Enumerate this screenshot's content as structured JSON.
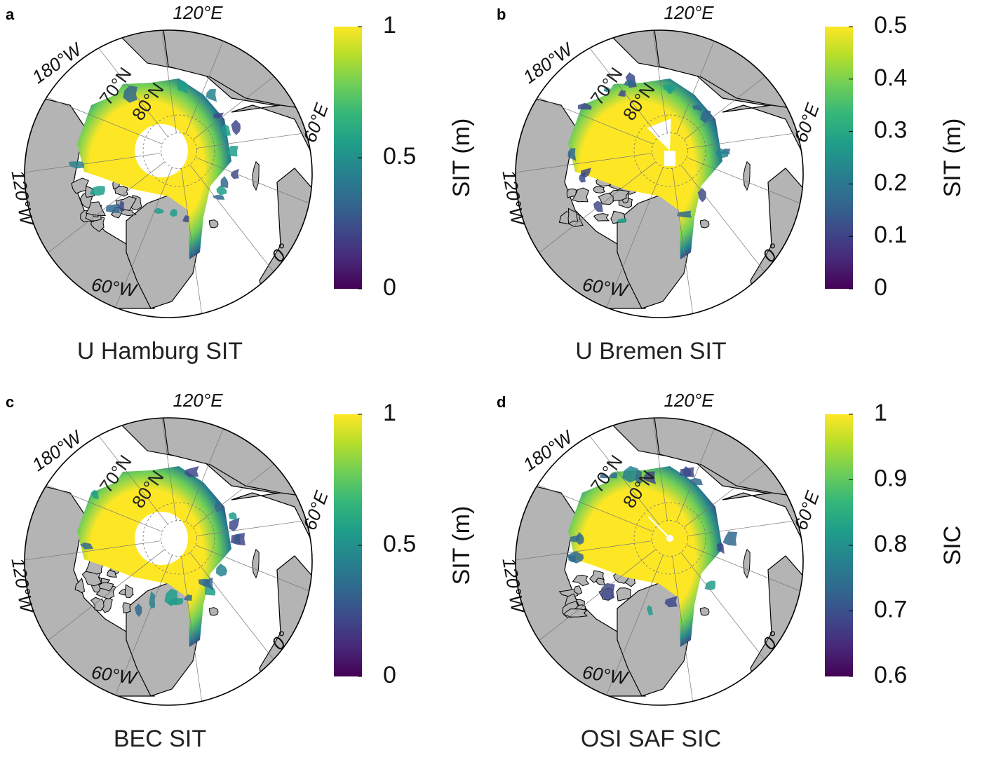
{
  "chart_data": [
    {
      "type": "heatmap",
      "panel_letter": "a",
      "title": "U Hamburg SIT",
      "projection": "north polar stereographic",
      "lat_circle_labels": [
        "70°N",
        "80°N"
      ],
      "lon_labels": [
        "120°E",
        "60°E",
        "0°",
        "60°W",
        "120°W",
        "180°W"
      ],
      "colorbar": {
        "label": "SIT (m)",
        "range": [
          0,
          1
        ],
        "ticks": [
          "0",
          "0.5",
          "1"
        ],
        "colormap": "viridis"
      },
      "pole_hole": "large"
    },
    {
      "type": "heatmap",
      "panel_letter": "b",
      "title": "U Bremen SIT",
      "projection": "north polar stereographic",
      "lat_circle_labels": [
        "70°N",
        "80°N"
      ],
      "lon_labels": [
        "120°E",
        "60°E",
        "0°",
        "60°W",
        "120°W",
        "180°W"
      ],
      "colorbar": {
        "label": "SIT (m)",
        "range": [
          0,
          0.5
        ],
        "ticks": [
          "0",
          "0.1",
          "0.2",
          "0.3",
          "0.4",
          "0.5"
        ],
        "colormap": "viridis"
      },
      "pole_hole": "wedge"
    },
    {
      "type": "heatmap",
      "panel_letter": "c",
      "title": "BEC SIT",
      "projection": "north polar stereographic",
      "lat_circle_labels": [
        "70°N",
        "80°N"
      ],
      "lon_labels": [
        "120°E",
        "60°E",
        "0°",
        "60°W",
        "120°W",
        "180°W"
      ],
      "colorbar": {
        "label": "SIT (m)",
        "range": [
          0,
          1
        ],
        "ticks": [
          "0",
          "0.5",
          "1"
        ],
        "colormap": "viridis"
      },
      "pole_hole": "large"
    },
    {
      "type": "heatmap",
      "panel_letter": "d",
      "title": "OSI SAF SIC",
      "projection": "north polar stereographic",
      "lat_circle_labels": [
        "70°N",
        "80°N"
      ],
      "lon_labels": [
        "120°E",
        "60°E",
        "0°",
        "60°W",
        "120°W",
        "180°W"
      ],
      "colorbar": {
        "label": "SIC",
        "range": [
          0.6,
          1
        ],
        "ticks": [
          "0.6",
          "0.7",
          "0.8",
          "0.9",
          "1"
        ],
        "colormap": "viridis"
      },
      "pole_hole": "small"
    }
  ],
  "colors": {
    "land": "#b4b4b4",
    "ocean": "#ffffff",
    "coast": "#000000",
    "grid": "#777777",
    "viridis": [
      "#440154",
      "#482878",
      "#3e4989",
      "#31688e",
      "#26828e",
      "#1f9e89",
      "#35b779",
      "#6ece58",
      "#b5de2b",
      "#fde725"
    ]
  }
}
